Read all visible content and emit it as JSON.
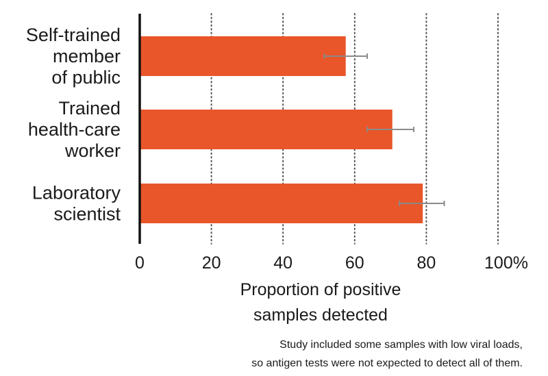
{
  "chart_data": {
    "type": "bar",
    "orientation": "horizontal",
    "categories": [
      [
        "Self-trained",
        "member",
        "of public"
      ],
      [
        "Trained",
        "health-care",
        "worker"
      ],
      [
        "Laboratory",
        "scientist"
      ]
    ],
    "values": [
      57.5,
      70.5,
      79
    ],
    "error_bars": [
      [
        51.5,
        63.5
      ],
      [
        63.5,
        76.5
      ],
      [
        72.5,
        85
      ]
    ],
    "xlim": [
      0,
      100
    ],
    "xticks": [
      0,
      20,
      40,
      60,
      80,
      100
    ],
    "xtick_labels": [
      "0",
      "20",
      "40",
      "60",
      "80",
      "100%"
    ],
    "xlabel": [
      "Proportion of positive",
      "samples detected"
    ],
    "grid": "vertical dotted",
    "bar_color": "#e8562a",
    "error_color": "#8a8a8a",
    "note": [
      "Study included some samples with low viral loads,",
      "so antigen tests were not expected to detect all of them."
    ]
  }
}
